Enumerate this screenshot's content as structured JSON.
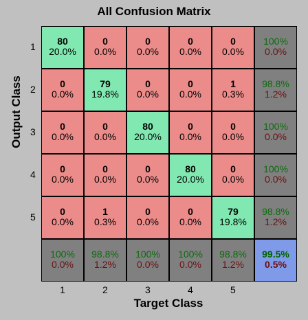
{
  "chart_data": {
    "type": "heatmap",
    "title": "All Confusion Matrix",
    "xlabel": "Target Class",
    "ylabel": "Output Class",
    "x_tick_labels": [
      "1",
      "2",
      "3",
      "4",
      "5"
    ],
    "y_tick_labels": [
      "1",
      "2",
      "3",
      "4",
      "5"
    ],
    "matrix": [
      [
        {
          "count": "80",
          "pct": "20.0%"
        },
        {
          "count": "0",
          "pct": "0.0%"
        },
        {
          "count": "0",
          "pct": "0.0%"
        },
        {
          "count": "0",
          "pct": "0.0%"
        },
        {
          "count": "0",
          "pct": "0.0%"
        }
      ],
      [
        {
          "count": "0",
          "pct": "0.0%"
        },
        {
          "count": "79",
          "pct": "19.8%"
        },
        {
          "count": "0",
          "pct": "0.0%"
        },
        {
          "count": "0",
          "pct": "0.0%"
        },
        {
          "count": "1",
          "pct": "0.3%"
        }
      ],
      [
        {
          "count": "0",
          "pct": "0.0%"
        },
        {
          "count": "0",
          "pct": "0.0%"
        },
        {
          "count": "80",
          "pct": "20.0%"
        },
        {
          "count": "0",
          "pct": "0.0%"
        },
        {
          "count": "0",
          "pct": "0.0%"
        }
      ],
      [
        {
          "count": "0",
          "pct": "0.0%"
        },
        {
          "count": "0",
          "pct": "0.0%"
        },
        {
          "count": "0",
          "pct": "0.0%"
        },
        {
          "count": "80",
          "pct": "20.0%"
        },
        {
          "count": "0",
          "pct": "0.0%"
        }
      ],
      [
        {
          "count": "0",
          "pct": "0.0%"
        },
        {
          "count": "1",
          "pct": "0.3%"
        },
        {
          "count": "0",
          "pct": "0.0%"
        },
        {
          "count": "0",
          "pct": "0.0%"
        },
        {
          "count": "79",
          "pct": "19.8%"
        }
      ]
    ],
    "row_summary": [
      {
        "correct": "100%",
        "error": "0.0%"
      },
      {
        "correct": "98.8%",
        "error": "1.2%"
      },
      {
        "correct": "100%",
        "error": "0.0%"
      },
      {
        "correct": "100%",
        "error": "0.0%"
      },
      {
        "correct": "98.8%",
        "error": "1.2%"
      }
    ],
    "col_summary": [
      {
        "correct": "100%",
        "error": "0.0%"
      },
      {
        "correct": "98.8%",
        "error": "1.2%"
      },
      {
        "correct": "100%",
        "error": "0.0%"
      },
      {
        "correct": "100%",
        "error": "0.0%"
      },
      {
        "correct": "98.8%",
        "error": "1.2%"
      }
    ],
    "overall": {
      "correct": "99.5%",
      "error": "0.5%"
    },
    "colors": {
      "diagonal": "#80e8b0",
      "off_diagonal": "#eb8c8a",
      "summary": "#808080",
      "overall": "#7f9ae8",
      "background": "#c0c0c0"
    }
  }
}
